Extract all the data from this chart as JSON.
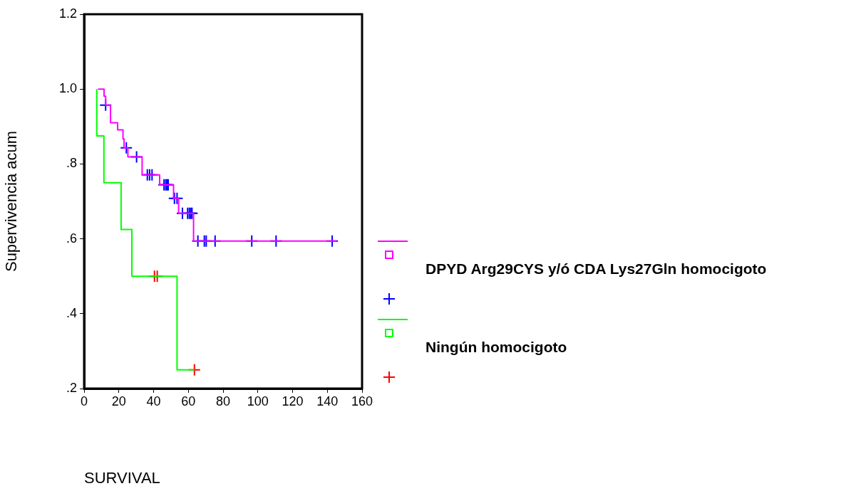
{
  "chart_data": {
    "type": "step",
    "xlabel": "SURVIVAL",
    "ylabel": "Supervivencia acum",
    "xlim": [
      0,
      160
    ],
    "xticks": [
      0,
      20,
      40,
      60,
      80,
      100,
      120,
      140,
      160
    ],
    "ylim": [
      0.2,
      1.2
    ],
    "yticks": [
      {
        "value": 0.2,
        "label": ".2"
      },
      {
        "value": 0.4,
        "label": ".4"
      },
      {
        "value": 0.6,
        "label": ".6"
      },
      {
        "value": 0.8,
        "label": ".8"
      },
      {
        "value": 1.0,
        "label": "1.0"
      },
      {
        "value": 1.2,
        "label": "1.2"
      }
    ],
    "grid": false,
    "legend": "right",
    "series": [
      {
        "name": "DPYD Arg29CYS y/ó CDA Lys27Gln homocigoto",
        "type": "step",
        "color": "#ff00ff",
        "marker": "none",
        "x": [
          8,
          11.5,
          12.4,
          15.2,
          19.3,
          22.4,
          23,
          25.2,
          33.4,
          43.5,
          51.5,
          54.4,
          63,
          145.5
        ],
        "values": [
          1.0,
          0.981,
          0.957,
          0.91,
          0.891,
          0.867,
          0.843,
          0.819,
          0.771,
          0.744,
          0.708,
          0.668,
          0.594,
          0.594
        ]
      },
      {
        "type": "scatter",
        "color": "#0000ff",
        "marker": "cross",
        "x": [
          12.4,
          24.3,
          30.2,
          36.4,
          37.7,
          39.1,
          46,
          47,
          47.7,
          48.4,
          52,
          53.5,
          56.6,
          59.6,
          60.6,
          61.4,
          62.1,
          65.5,
          69.2,
          70.3,
          75.4,
          96.5,
          110.5,
          142.8
        ],
        "values": [
          0.957,
          0.843,
          0.819,
          0.771,
          0.771,
          0.771,
          0.744,
          0.744,
          0.744,
          0.744,
          0.708,
          0.708,
          0.668,
          0.668,
          0.668,
          0.668,
          0.668,
          0.594,
          0.594,
          0.594,
          0.594,
          0.594,
          0.594,
          0.594
        ]
      },
      {
        "name": "Ningún homocigoto",
        "type": "step",
        "color": "#00ff00",
        "marker": "none",
        "x": [
          7.3,
          7.3,
          11.4,
          21.3,
          27.5,
          53.5,
          63.5
        ],
        "values": [
          1.0,
          0.875,
          0.75,
          0.625,
          0.5,
          0.25,
          0.25
        ]
      },
      {
        "type": "scatter",
        "color": "#ff0000",
        "marker": "cross",
        "x": [
          40.5,
          42.1,
          63.5
        ],
        "values": [
          0.5,
          0.5,
          0.25
        ]
      }
    ]
  }
}
